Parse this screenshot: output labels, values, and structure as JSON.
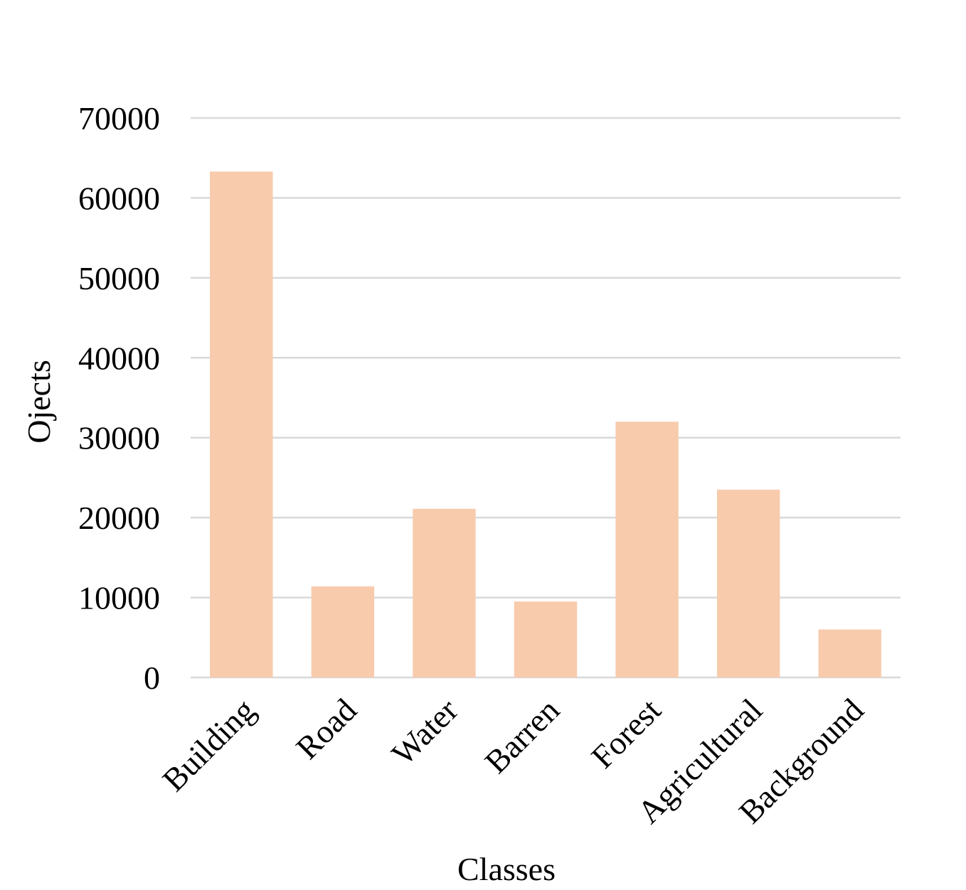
{
  "chart_data": {
    "type": "bar",
    "title": "",
    "xlabel": "Classes",
    "ylabel": "Ojects",
    "categories": [
      "Building",
      "Road",
      "Water",
      "Barren",
      "Forest",
      "Agricultural",
      "Background"
    ],
    "values": [
      63300,
      11400,
      21100,
      9500,
      32000,
      23500,
      6000
    ],
    "ylim": [
      0,
      70000
    ],
    "yticks": [
      0,
      10000,
      20000,
      30000,
      40000,
      50000,
      60000,
      70000
    ],
    "ytick_labels": [
      "0",
      "10000",
      "20000",
      "30000",
      "40000",
      "50000",
      "60000",
      "70000"
    ],
    "grid": true,
    "legend": "none",
    "bar_color": "#f8cbad",
    "grid_color": "#d9d9d9"
  }
}
